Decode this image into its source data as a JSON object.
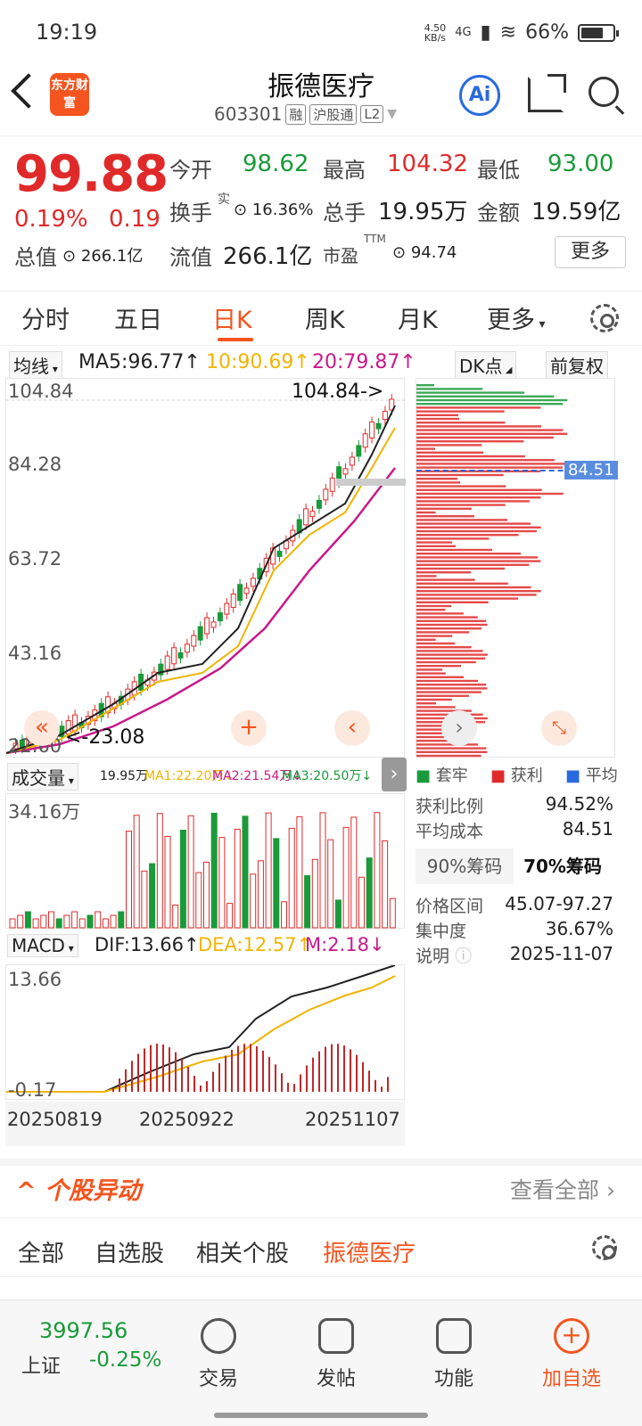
{
  "status": {
    "time": "19:19",
    "netspeed_value": "4.50",
    "netspeed_unit": "KB/s",
    "network": "4G",
    "battery": "66%"
  },
  "header": {
    "back_label": "<",
    "logo_text": "东方财富",
    "name": "振德医疗",
    "code": "603301",
    "tags": [
      "融",
      "沪股通",
      "L2"
    ],
    "ai_label": "Ai"
  },
  "quote": {
    "price": "99.88",
    "pct": "0.19%",
    "chg": "0.19",
    "open_label": "今开",
    "open": "98.62",
    "high_label": "最高",
    "high": "104.32",
    "low_label": "最低",
    "low": "93.00",
    "turnover_label": "换手",
    "turnover_sup": "实",
    "turnover": "16.36%",
    "volume_label": "总手",
    "volume": "19.95万",
    "amount_label": "金额",
    "amount": "19.59亿",
    "mcap_label": "总值",
    "mcap": "266.1亿",
    "float_label": "流值",
    "float": "266.1亿",
    "pe_label": "市盈",
    "pe_sup": "TTM",
    "pe": "94.74",
    "more": "更多"
  },
  "tabs": [
    "分时",
    "五日",
    "日K",
    "周K",
    "月K",
    "更多"
  ],
  "ma": {
    "selector": "均线",
    "ma5": "MA5:96.77↑",
    "ma10": "10:90.69↑",
    "ma20": "20:79.87↑",
    "dk": "DK点",
    "fq": "前复权"
  },
  "kchart": {
    "y_labels": [
      "104.84",
      "84.28",
      "63.72",
      "43.16",
      "22.60"
    ],
    "max_label": "104.84->",
    "min_label": "<-23.08",
    "cost_label": "84.51"
  },
  "chips": {
    "legend": [
      "套牢",
      "获利",
      "平均"
    ],
    "rows": [
      {
        "label": "获利比例",
        "value": "94.52%"
      },
      {
        "label": "平均成本",
        "value": "84.51"
      }
    ],
    "tab90": "90%筹码",
    "tab70": "70%筹码",
    "rows2": [
      {
        "label": "价格区间",
        "value": "45.07-97.27"
      },
      {
        "label": "集中度",
        "value": "36.67%"
      },
      {
        "label": "说明",
        "value": "2025-11-07"
      }
    ]
  },
  "volume": {
    "selector": "成交量",
    "v": "19.95万",
    "ma1": "MA1:22.20万↓",
    "ma2": "MA2:21.54万↓",
    "ma3": "MA3:20.50万↓",
    "ymax": "34.16万"
  },
  "macd": {
    "selector": "MACD",
    "dif": "DIF:13.66↑",
    "dea": "DEA:12.57↑",
    "m": "M:2.18↓",
    "ymax": "13.66",
    "ymin": "-0.17"
  },
  "dates": [
    "20250819",
    "20250922",
    "20251107"
  ],
  "section": {
    "title": "个股异动",
    "link": "查看全部",
    "filters": [
      "全部",
      "自选股",
      "相关个股",
      "振德医疗"
    ]
  },
  "bottom": {
    "index_value": "3997.56",
    "index_name": "上证",
    "index_pct": "-0.25%",
    "nav": [
      "交易",
      "发帖",
      "功能",
      "加自选"
    ]
  },
  "colors": {
    "red": "#e02a2a",
    "green": "#1a9a3a",
    "orange": "#f5541e",
    "yellow": "#f0b400",
    "magenta": "#c8198a"
  }
}
